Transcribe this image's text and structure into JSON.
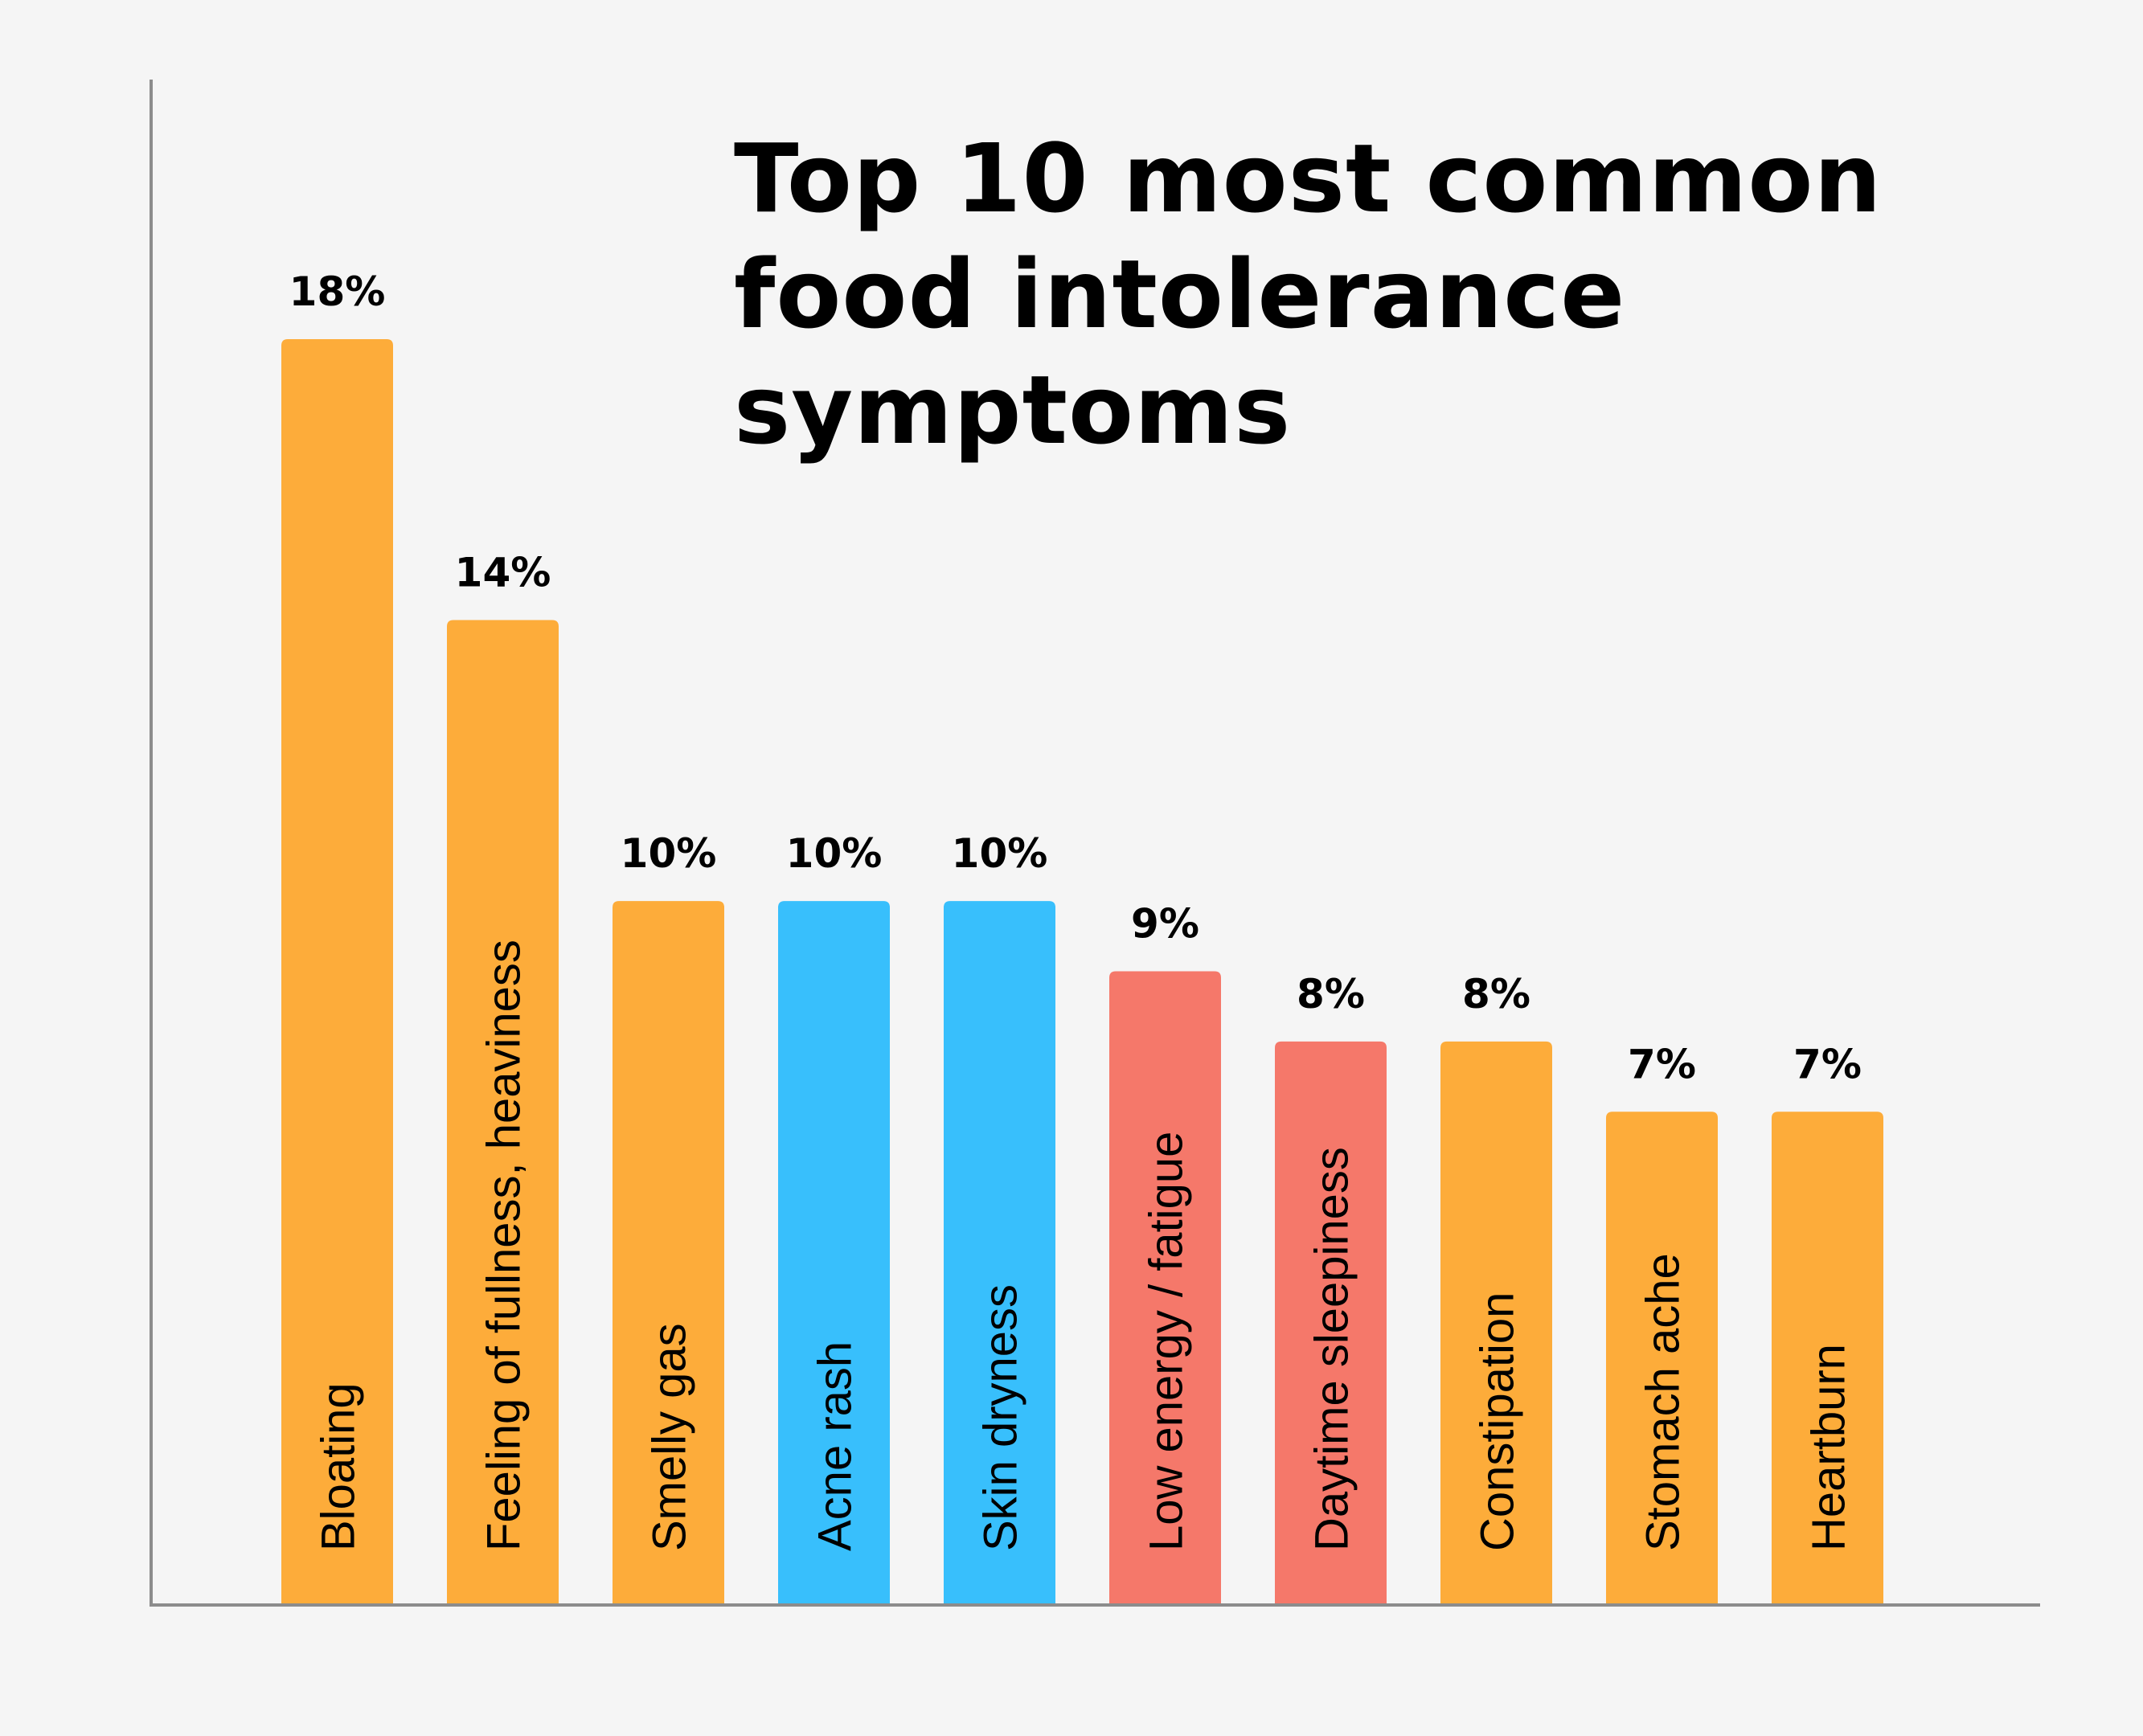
{
  "chart_data": {
    "type": "bar",
    "title_lines": [
      "Top 10 most common",
      "food intolerance",
      "symptoms"
    ],
    "categories": [
      "Bloating",
      "Feeling of fullness, heaviness",
      "Smelly gas",
      "Acne rash",
      "Skin dryness",
      "Low energy / fatigue",
      "Daytime sleepiness",
      "Constipation",
      "Stomach ache",
      "Heartburn"
    ],
    "values": [
      18,
      14,
      10,
      10,
      10,
      9,
      8,
      8,
      7,
      7
    ],
    "data_labels": [
      "18%",
      "14%",
      "10%",
      "10%",
      "10%",
      "9%",
      "8%",
      "8%",
      "7%",
      "7%"
    ],
    "bar_colors": [
      "#fdac3a",
      "#fdac3a",
      "#fdac3a",
      "#38bffc",
      "#38bffc",
      "#f5786a",
      "#f5786a",
      "#fdac3a",
      "#fdac3a",
      "#fdac3a"
    ],
    "ylim": [
      0,
      18
    ],
    "grid": false,
    "xlabel": "",
    "ylabel": ""
  },
  "colors": {
    "background": "#f5f5f5",
    "axis": "#8c8c8c"
  }
}
